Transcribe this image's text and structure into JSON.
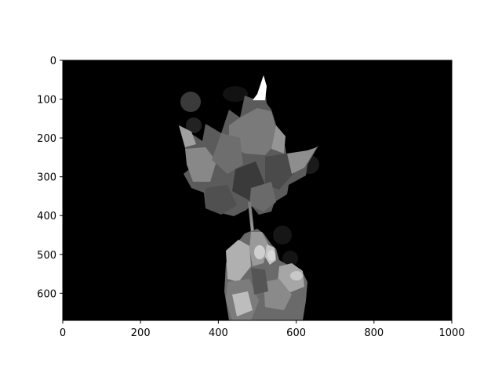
{
  "chart_data": {
    "type": "image",
    "title": "",
    "xlabel": "",
    "ylabel": "",
    "xlim": [
      0,
      1000
    ],
    "ylim": [
      670,
      0
    ],
    "x_ticks": [
      0,
      200,
      400,
      600,
      800,
      1000
    ],
    "y_ticks": [
      0,
      100,
      200,
      300,
      400,
      500,
      600
    ],
    "x_tick_labels": [
      "0",
      "200",
      "400",
      "600",
      "800",
      "1000"
    ],
    "y_tick_labels": [
      "0",
      "100",
      "200",
      "300",
      "400",
      "500",
      "600"
    ],
    "grid": false,
    "colormap": "gray",
    "background_color": "#000000",
    "image_subject": "posterized grayscale photo of a hand holding a maple leaf"
  }
}
